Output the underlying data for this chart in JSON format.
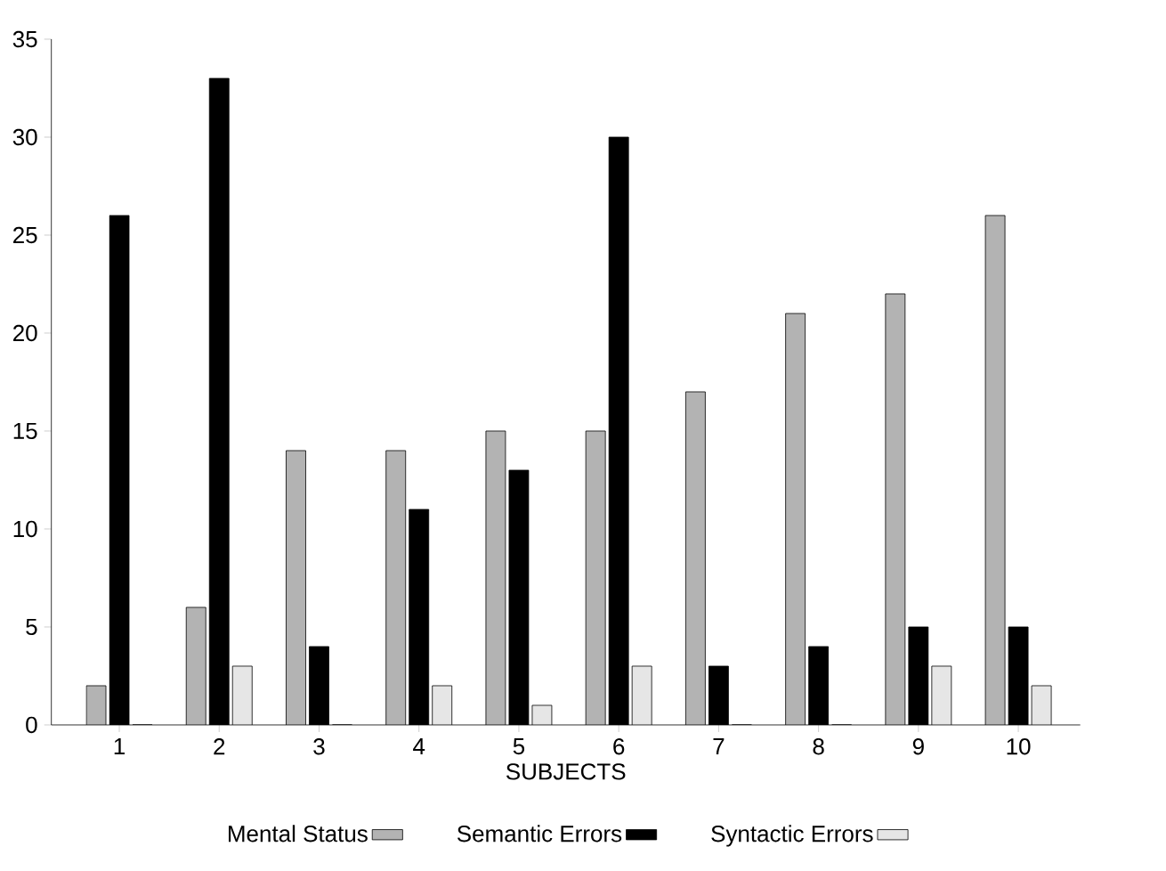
{
  "chart_data": {
    "type": "bar",
    "xlabel": "SUBJECTS",
    "categories": [
      "1",
      "2",
      "3",
      "4",
      "5",
      "6",
      "7",
      "8",
      "9",
      "10"
    ],
    "series": [
      {
        "name": "Mental Status",
        "color": "#b3b3b3",
        "values": [
          2,
          6,
          14,
          14,
          15,
          15,
          17,
          21,
          22,
          26
        ]
      },
      {
        "name": "Semantic Errors",
        "color": "#000000",
        "values": [
          26,
          33,
          4,
          11,
          13,
          30,
          3,
          4,
          5,
          5
        ]
      },
      {
        "name": "Syntactic Errors",
        "color": "#e6e6e6",
        "values": [
          0,
          3,
          0,
          2,
          1,
          3,
          0,
          0,
          3,
          2
        ]
      }
    ],
    "ylim": [
      0,
      35
    ],
    "yticks": [
      0,
      5,
      10,
      15,
      20,
      25,
      30,
      35
    ],
    "grid": false,
    "legend": "bottom"
  }
}
